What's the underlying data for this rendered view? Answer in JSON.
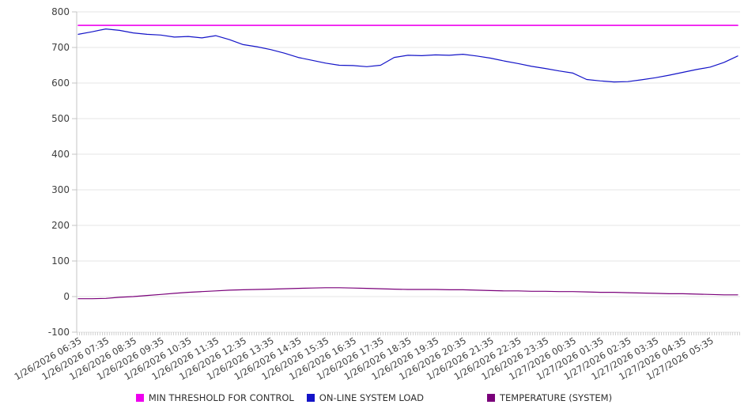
{
  "chart_data": {
    "type": "line",
    "title": "",
    "x_axis": {
      "tick_labels": [
        "1/26/2026 06:35",
        "1/26/2026 07:35",
        "1/26/2026 08:35",
        "1/26/2026 09:35",
        "1/26/2026 10:35",
        "1/26/2026 11:35",
        "1/26/2026 12:35",
        "1/26/2026 13:35",
        "1/26/2026 14:35",
        "1/26/2026 15:35",
        "1/26/2026 16:35",
        "1/26/2026 17:35",
        "1/26/2026 18:35",
        "1/26/2026 19:35",
        "1/26/2026 20:35",
        "1/26/2026 21:35",
        "1/26/2026 22:35",
        "1/26/2026 23:35",
        "1/27/2026 00:35",
        "1/27/2026 01:35",
        "1/27/2026 02:35",
        "1/27/2026 03:35",
        "1/27/2026 04:35",
        "1/27/2026 05:35"
      ],
      "points_per_tick": 2,
      "minor_tick_count": 288
    },
    "y_axis": {
      "min": -100,
      "max": 800,
      "step": 100,
      "tick_labels": [
        "800",
        "700",
        "600",
        "500",
        "400",
        "300",
        "200",
        "100",
        "0",
        "-100"
      ]
    },
    "series": [
      {
        "name": "MIN THRESHOLD FOR CONTROL",
        "color": "#ee00ee",
        "width": 1.6,
        "values": [
          762,
          762,
          762,
          762,
          762,
          762,
          762,
          762,
          762,
          762,
          762,
          762,
          762,
          762,
          762,
          762,
          762,
          762,
          762,
          762,
          762,
          762,
          762,
          762,
          762,
          762,
          762,
          762,
          762,
          762,
          762,
          762,
          762,
          762,
          762,
          762,
          762,
          762,
          762,
          762,
          762,
          762,
          762,
          762,
          762,
          762,
          762,
          762,
          762
        ]
      },
      {
        "name": "ON-LINE SYSTEM LOAD",
        "color": "#1414c8",
        "width": 1.2,
        "values": [
          737,
          744,
          752,
          748,
          741,
          737,
          735,
          729,
          731,
          727,
          733,
          722,
          708,
          702,
          694,
          684,
          672,
          664,
          656,
          650,
          649,
          646,
          650,
          672,
          678,
          677,
          679,
          678,
          681,
          676,
          670,
          662,
          655,
          647,
          641,
          634,
          628,
          610,
          606,
          603,
          604,
          609,
          615,
          622,
          630,
          638,
          645,
          658,
          676
        ]
      },
      {
        "name": "TEMPERATURE (SYSTEM)",
        "color": "#7a007a",
        "width": 1.2,
        "values": [
          -6,
          -6,
          -5,
          -2,
          0,
          3,
          6,
          9,
          12,
          14,
          16,
          18,
          19,
          20,
          21,
          22,
          23,
          24,
          25,
          25,
          24,
          23,
          22,
          21,
          20,
          20,
          20,
          19,
          19,
          18,
          17,
          16,
          16,
          15,
          15,
          14,
          14,
          13,
          12,
          12,
          11,
          10,
          9,
          8,
          8,
          7,
          6,
          5,
          5
        ]
      }
    ],
    "legend": {
      "position": "bottom",
      "labels": [
        "MIN THRESHOLD FOR CONTROL",
        "ON-LINE SYSTEM LOAD",
        "TEMPERATURE (SYSTEM)"
      ]
    },
    "grid": "horizontal",
    "colors": {
      "grid_line": "#e5e5e5",
      "axis_line": "#c4c4c4",
      "minor_tick": "#b2b2b2",
      "label_text": "#3f3f3f"
    }
  }
}
